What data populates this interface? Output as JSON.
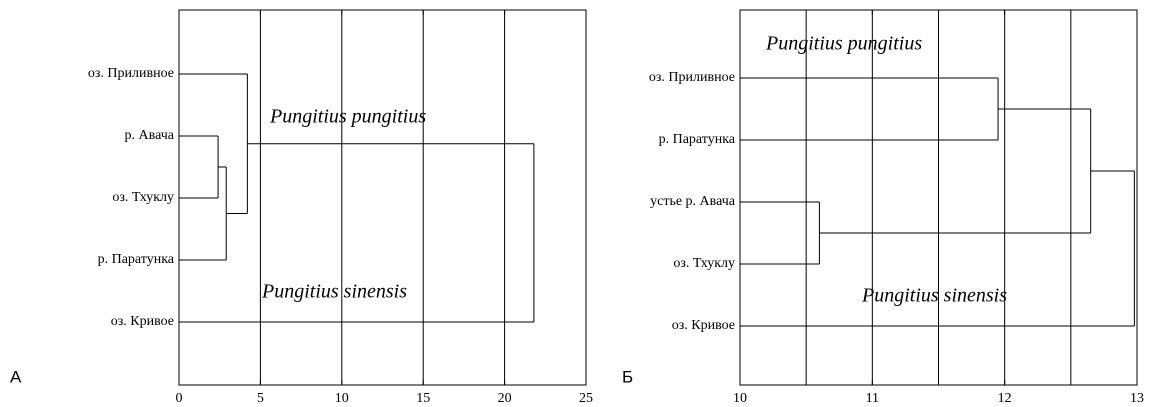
{
  "chart_data": [
    {
      "type": "dendrogram",
      "panel_label": "А",
      "xlim": [
        0,
        25
      ],
      "xticks": [
        0,
        5,
        10,
        15,
        20,
        25
      ],
      "xgrid": [
        5,
        10,
        15,
        20
      ],
      "annotations": [
        "Pungitius pungitius",
        "Pungitius sinensis"
      ],
      "tree": {
        "height": 21.8,
        "children": [
          {
            "height": 4.2,
            "children": [
              "оз. Приливное",
              {
                "height": 2.9,
                "children": [
                  {
                    "height": 2.4,
                    "children": [
                      "р. Авача",
                      "оз. Тхуклу"
                    ]
                  },
                  "р. Паратунка"
                ]
              }
            ]
          },
          "оз. Кривое"
        ]
      }
    },
    {
      "type": "dendrogram",
      "panel_label": "Б",
      "xlim": [
        10,
        13
      ],
      "xticks": [
        10,
        11,
        12,
        13
      ],
      "xgrid": [
        10.5,
        11,
        11.5,
        12,
        12.5
      ],
      "annotations": [
        "Pungitius pungitius",
        "Pungitius sinensis"
      ],
      "tree": {
        "height": 12.98,
        "children": [
          {
            "height": 12.65,
            "children": [
              {
                "height": 11.95,
                "children": [
                  "оз. Приливное",
                  "р. Паратунка"
                ]
              },
              {
                "height": 10.6,
                "children": [
                  "устье р. Авача",
                  "оз. Тхуклу"
                ]
              }
            ]
          },
          "оз. Кривое"
        ]
      }
    }
  ]
}
